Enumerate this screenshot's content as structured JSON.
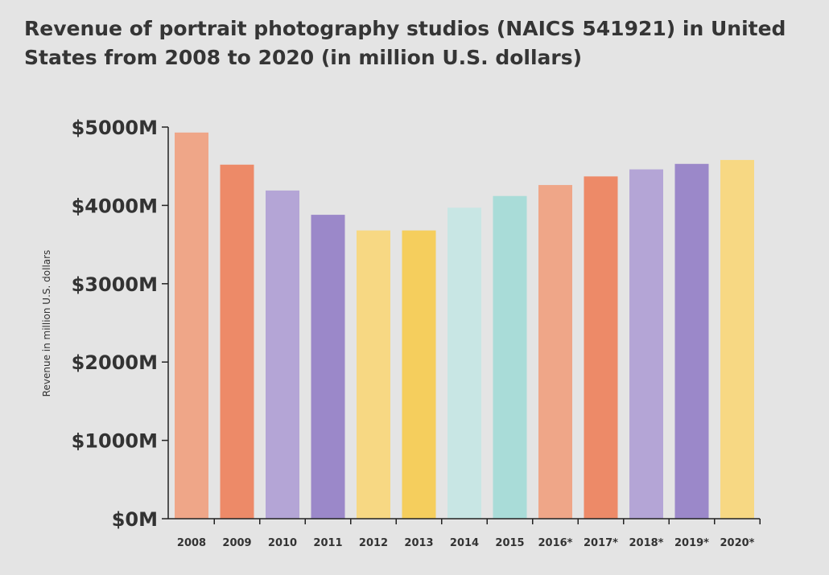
{
  "chart_data": {
    "type": "bar",
    "title": "Revenue of portrait photography studios (NAICS 541921) in United States from 2008 to 2020 (in million U.S. dollars)",
    "xlabel": "",
    "ylabel": "Revenue in million U.S. dollars",
    "categories": [
      "2008",
      "2009",
      "2010",
      "2011",
      "2012",
      "2013",
      "2014",
      "2015",
      "2016*",
      "2017*",
      "2018*",
      "2019*",
      "2020*"
    ],
    "values": [
      4930,
      4520,
      4190,
      3880,
      3680,
      3680,
      3970,
      4120,
      4260,
      4370,
      4460,
      4530,
      4580
    ],
    "ylim": [
      0,
      5000
    ],
    "yticks": [
      0,
      1000,
      2000,
      3000,
      4000,
      5000
    ],
    "ytick_labels": [
      "$0M",
      "$1000M",
      "$2000M",
      "$3000M",
      "$4000M",
      "$5000M"
    ],
    "bar_colors": [
      "#efa688",
      "#ed8a68",
      "#b4a5d6",
      "#9b88c9",
      "#f7d883",
      "#f5ce5d",
      "#c8e6e4",
      "#a9dcd8",
      "#efa688",
      "#ed8a68",
      "#b4a5d6",
      "#9b88c9",
      "#f7d883"
    ],
    "grid": false,
    "legend": "none"
  }
}
